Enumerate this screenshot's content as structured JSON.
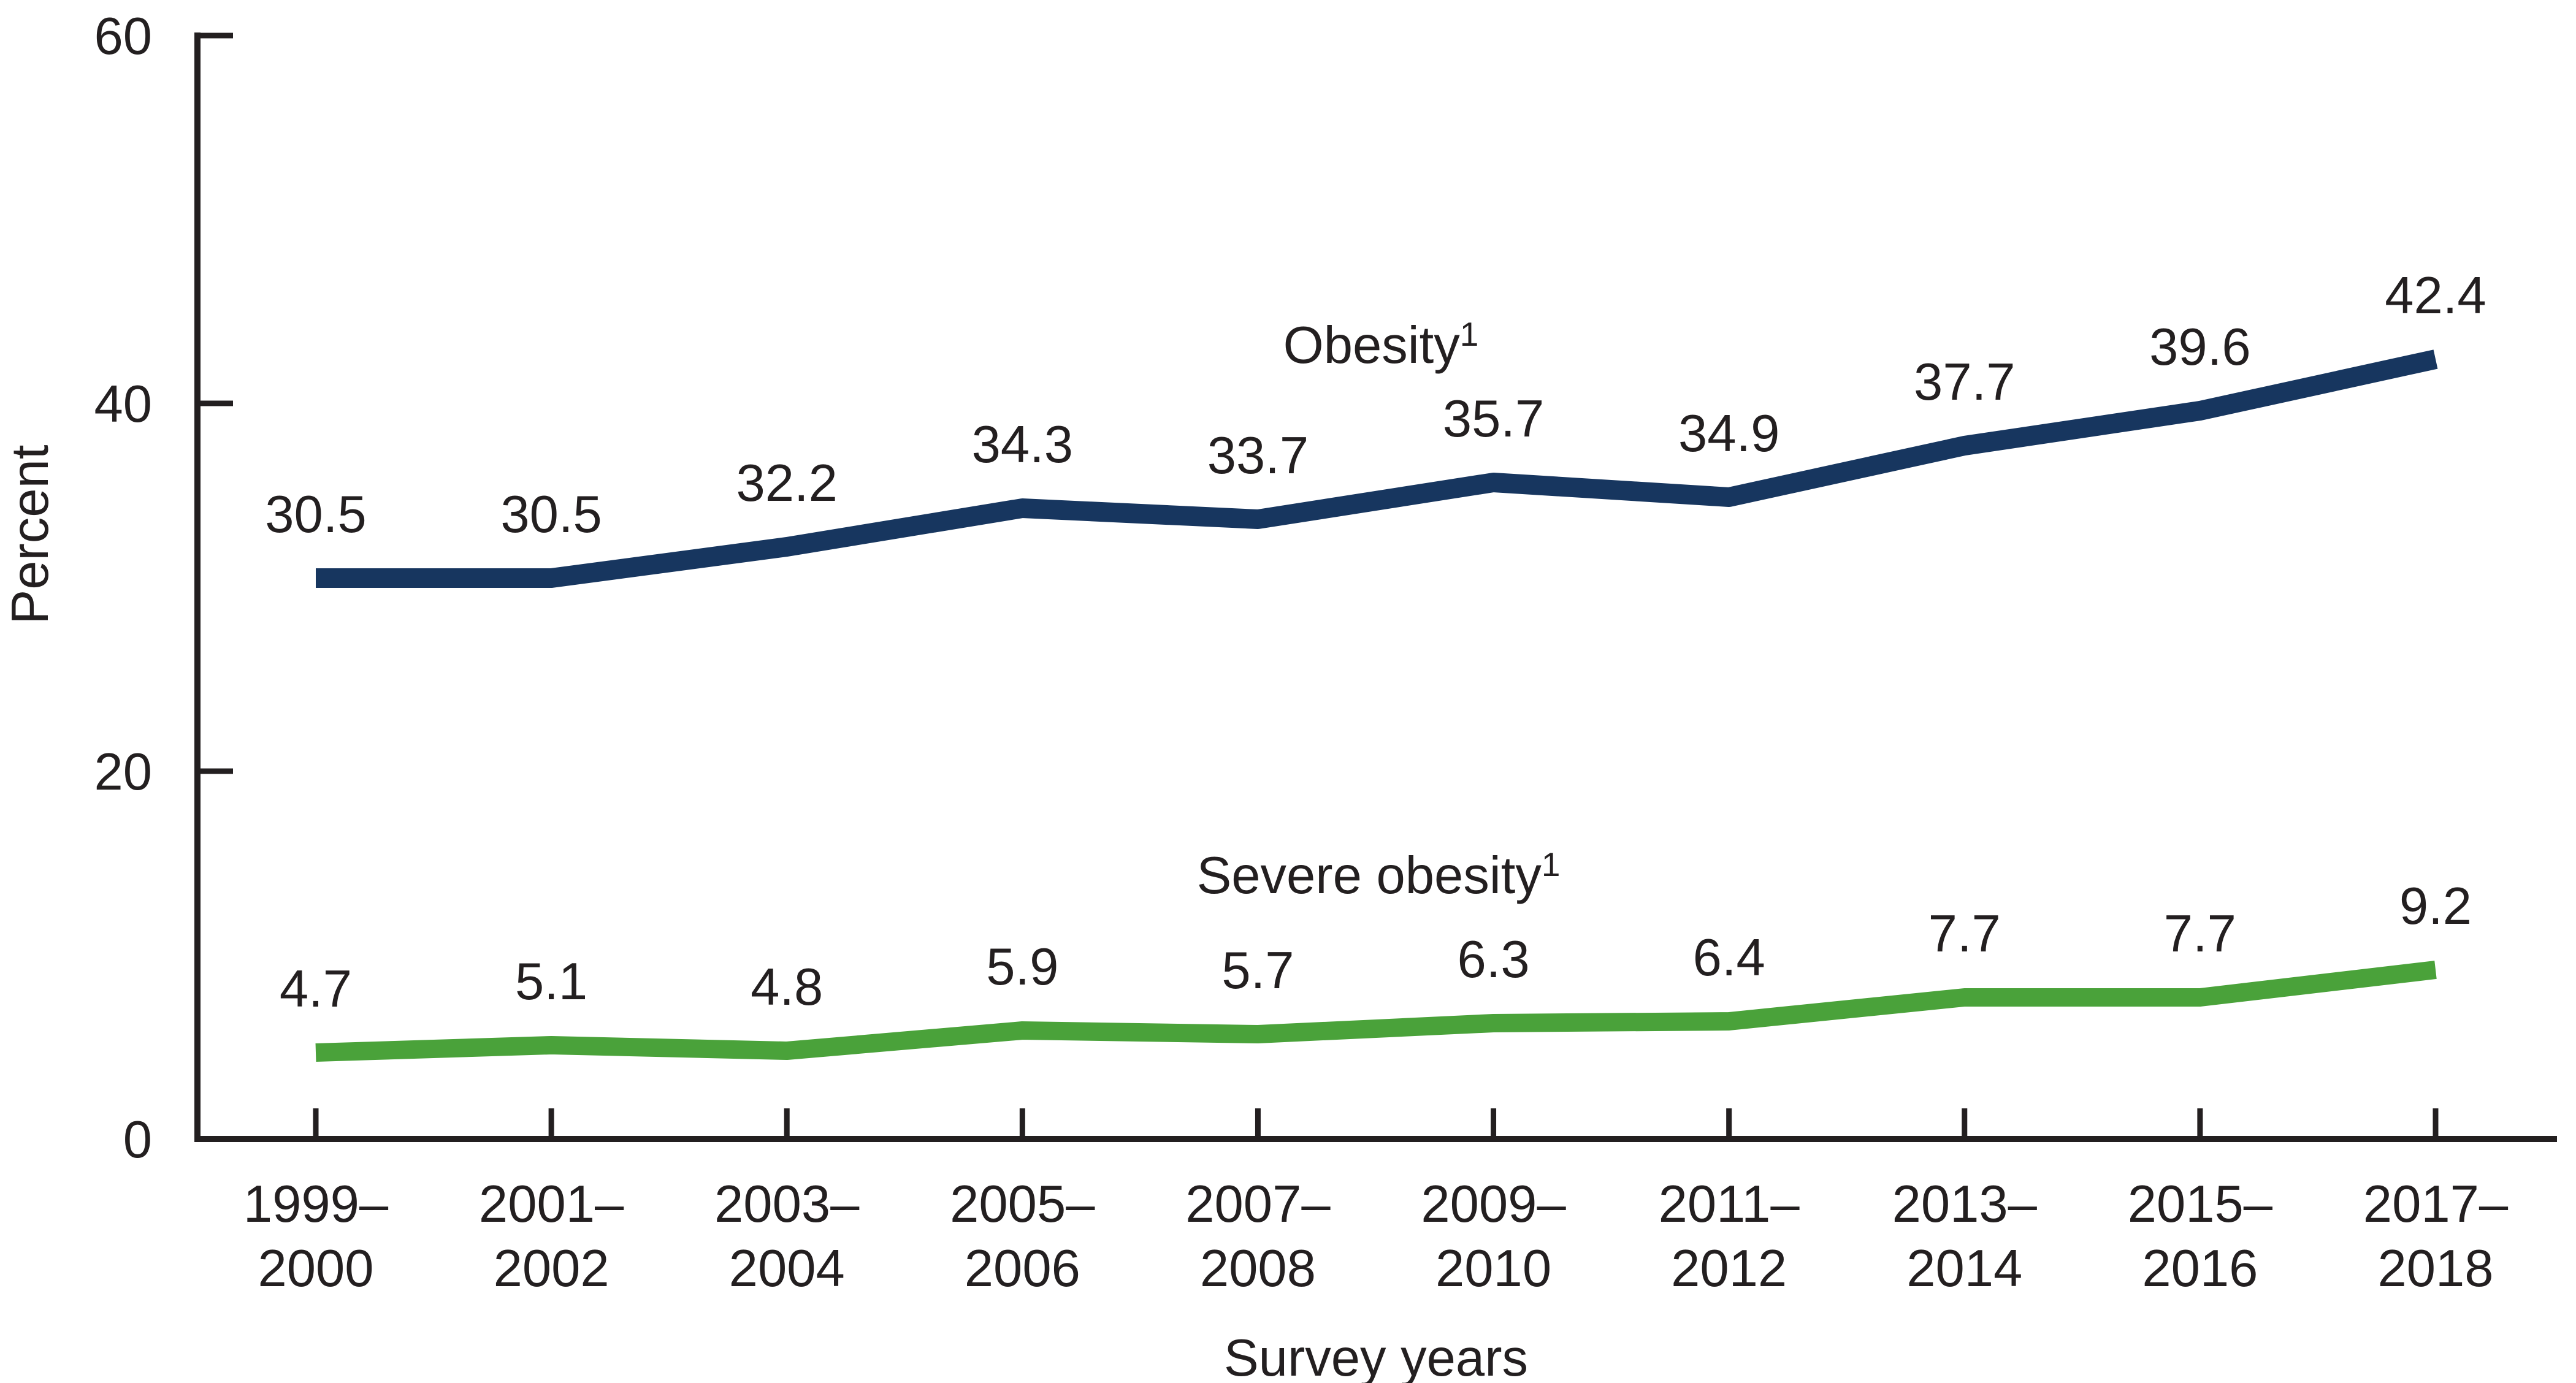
{
  "chart_data": {
    "type": "line",
    "title": "",
    "ylabel": "Percent",
    "xlabel": "Survey years",
    "ylim": [
      0,
      60
    ],
    "yticks": [
      0,
      20,
      40,
      60
    ],
    "grid": false,
    "legend_position": "inline-labels-above-lines",
    "categories": [
      "1999–2000",
      "2001–2002",
      "2003–2004",
      "2005–2006",
      "2007–2008",
      "2009–2010",
      "2011–2012",
      "2013–2014",
      "2015–2016",
      "2017–2018"
    ],
    "series": [
      {
        "name": "Obesity",
        "superscript": "1",
        "color": "#17365f",
        "values": [
          30.5,
          30.5,
          32.2,
          34.3,
          33.7,
          35.7,
          34.9,
          37.7,
          39.6,
          42.4
        ]
      },
      {
        "name": "Severe obesity",
        "superscript": "1",
        "color": "#4aa23a",
        "values": [
          4.7,
          5.1,
          4.8,
          5.9,
          5.7,
          6.3,
          6.4,
          7.7,
          7.7,
          9.2
        ]
      }
    ]
  }
}
